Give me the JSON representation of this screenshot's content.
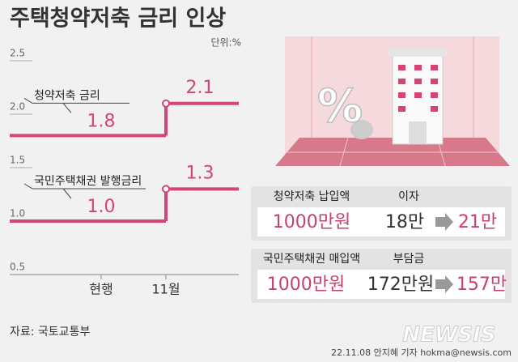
{
  "title": "주택청약저축 금리 인상",
  "unit": "단위:%",
  "chart_data": {
    "type": "line",
    "categories": [
      "현행",
      "11월"
    ],
    "series": [
      {
        "name": "청약저축 금리",
        "color": "#d2466f",
        "values": [
          1.8,
          2.1
        ]
      },
      {
        "name": "국민주택채권 발행금리",
        "color": "#d2466f",
        "values": [
          1.0,
          1.3
        ],
        "value_labels": [
          "1.0",
          "1.3"
        ]
      }
    ],
    "ylim": [
      0.5,
      2.5
    ],
    "yticks": [
      0.5,
      {
        "value": 1,
        "label": "1.0"
      },
      1.5,
      {
        "value": 2,
        "label": "2.0"
      },
      2.5
    ]
  },
  "panels": [
    {
      "header": [
        "청약저축 납입액",
        "이자"
      ],
      "amount": "1000만원",
      "before": "18만",
      "after": "21만"
    },
    {
      "header": [
        "국민주택채권 매입액",
        "부담금"
      ],
      "amount": "1000만원",
      "before": "172만원",
      "after": "157만"
    }
  ],
  "source": "자료: 국토교통부",
  "watermark": "NEWSIS",
  "credit": "22.11.08 안지혜 기자 hokma@newsis.com"
}
